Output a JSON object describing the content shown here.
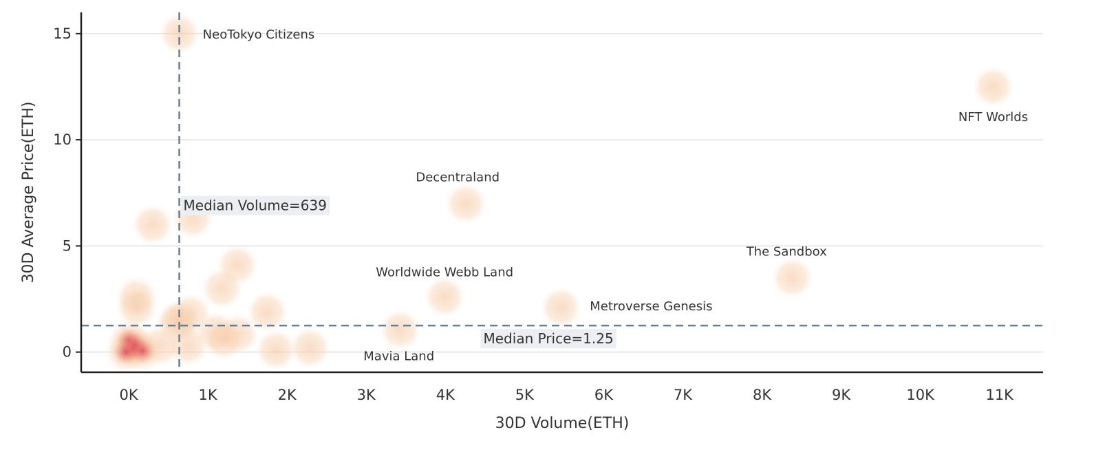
{
  "chart_data": {
    "type": "scatter",
    "xlabel": "30D Volume(ETH)",
    "ylabel": "30D Average Price(ETH)",
    "xlim": [
      -600,
      11550
    ],
    "ylim": [
      -0.95,
      16
    ],
    "x_ticks": [
      {
        "value": 0,
        "label": "0K"
      },
      {
        "value": 1000,
        "label": "1K"
      },
      {
        "value": 2000,
        "label": "2K"
      },
      {
        "value": 3000,
        "label": "3K"
      },
      {
        "value": 4000,
        "label": "4K"
      },
      {
        "value": 5000,
        "label": "5K"
      },
      {
        "value": 6000,
        "label": "6K"
      },
      {
        "value": 7000,
        "label": "7K"
      },
      {
        "value": 8000,
        "label": "8K"
      },
      {
        "value": 9000,
        "label": "9K"
      },
      {
        "value": 10000,
        "label": "10K"
      },
      {
        "value": 11000,
        "label": "11K"
      }
    ],
    "y_ticks": [
      {
        "value": 0,
        "label": "0"
      },
      {
        "value": 5,
        "label": "5"
      },
      {
        "value": 10,
        "label": "10"
      },
      {
        "value": 15,
        "label": "15"
      }
    ],
    "grid": "horizontal",
    "points": [
      {
        "x": 640,
        "y": 15.0,
        "label": "NeoTokyo Citizens"
      },
      {
        "x": 10920,
        "y": 12.5,
        "label": "NFT Worlds"
      },
      {
        "x": 4260,
        "y": 7.0,
        "label": "Decentraland"
      },
      {
        "x": 8380,
        "y": 3.5,
        "label": "The Sandbox"
      },
      {
        "x": 3990,
        "y": 2.6,
        "label": "Worldwide Webb Land"
      },
      {
        "x": 5460,
        "y": 2.1,
        "label": "Metroverse Genesis"
      },
      {
        "x": 3430,
        "y": 1.05,
        "label": "Mavia Land"
      },
      {
        "x": 300,
        "y": 6.0,
        "label": ""
      },
      {
        "x": 810,
        "y": 6.3,
        "label": ""
      },
      {
        "x": 1370,
        "y": 4.1,
        "label": ""
      },
      {
        "x": 1180,
        "y": 3.0,
        "label": ""
      },
      {
        "x": 100,
        "y": 2.6,
        "label": ""
      },
      {
        "x": 100,
        "y": 2.1,
        "label": ""
      },
      {
        "x": 1750,
        "y": 1.9,
        "label": ""
      },
      {
        "x": 780,
        "y": 1.8,
        "label": ""
      },
      {
        "x": 650,
        "y": 1.5,
        "label": ""
      },
      {
        "x": 600,
        "y": 1.4,
        "label": ""
      },
      {
        "x": 1100,
        "y": 0.95,
        "label": ""
      },
      {
        "x": 1380,
        "y": 0.85,
        "label": ""
      },
      {
        "x": 1200,
        "y": 0.6,
        "label": ""
      },
      {
        "x": 750,
        "y": 0.3,
        "label": ""
      },
      {
        "x": 400,
        "y": 0.3,
        "label": ""
      },
      {
        "x": 0,
        "y": 0.55,
        "label": ""
      },
      {
        "x": 80,
        "y": 0.35,
        "label": ""
      },
      {
        "x": 60,
        "y": 0.15,
        "label": ""
      },
      {
        "x": 180,
        "y": 0.05,
        "label": ""
      },
      {
        "x": -40,
        "y": 0.0,
        "label": ""
      },
      {
        "x": 1860,
        "y": 0.1,
        "label": ""
      },
      {
        "x": 2290,
        "y": 0.2,
        "label": ""
      }
    ],
    "medians": {
      "volume": {
        "value": 639,
        "label": "Median Volume=639"
      },
      "price": {
        "value": 1.25,
        "label": "Median Price=1.25"
      }
    },
    "colors": {
      "point": "#f7cfa8",
      "dense_core": "#e34a5a",
      "median_line": "#5f7f9e",
      "grid": "#e9e9e9"
    }
  }
}
